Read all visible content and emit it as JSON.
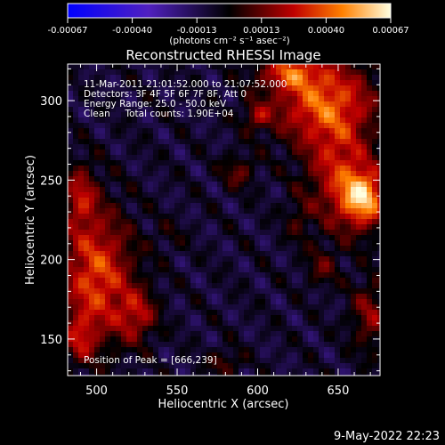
{
  "chart_data": {
    "type": "heatmap",
    "title": "Reconstructed RHESSI Image",
    "xlabel": "Heliocentric X (arcsec)",
    "ylabel": "Heliocentric Y (arcsec)",
    "xlim": [
      482,
      676
    ],
    "ylim": [
      127,
      323
    ],
    "x_ticks": [
      500,
      550,
      600,
      650
    ],
    "y_ticks": [
      150,
      200,
      250,
      300
    ],
    "colorbar": {
      "range": [
        -0.00067,
        0.00067
      ],
      "tick_labels": [
        "-0.00067",
        "-0.00040",
        "-0.00013",
        "0.00013",
        "0.00040",
        "0.00067"
      ],
      "label": "(photons cm⁻² s⁻¹ asec⁻²)"
    },
    "info_lines": [
      "11-Mar-2011 21:01:52.000 to 21:07:52.000",
      "Detectors: 3F 4F 5F 6F 7F 8F, Att 0",
      "Energy Range: 25.0 - 50.0 keV",
      "Clean     Total counts: 1.90E+04"
    ],
    "peak_label": "Position of Peak = [666,239]",
    "peak": [
      666,
      239
    ],
    "footer_date": "9-May-2022 22:23"
  }
}
